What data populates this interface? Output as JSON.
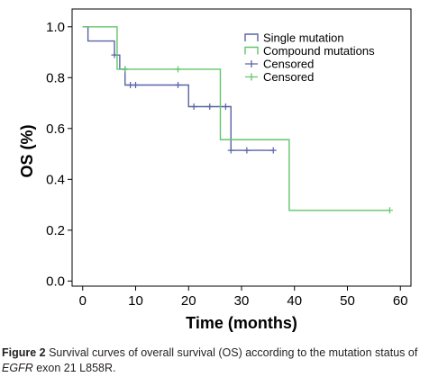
{
  "chart_data": {
    "type": "line",
    "subtype": "kaplan-meier-step",
    "xlabel": "Time (months)",
    "ylabel": "OS (%)",
    "xlim": [
      -2,
      62
    ],
    "ylim": [
      -0.02,
      1.07
    ],
    "xticks": [
      "0",
      "10",
      "20",
      "30",
      "40",
      "50",
      "60"
    ],
    "xtick_values": [
      0,
      10,
      20,
      30,
      40,
      50,
      60
    ],
    "yticks": [
      "0.0",
      "0.2",
      "0.4",
      "0.6",
      "0.8",
      "1.0"
    ],
    "ytick_values": [
      0,
      0.2,
      0.4,
      0.6,
      0.8,
      1.0
    ],
    "grid": false,
    "legend_position": "top-right",
    "series": [
      {
        "name": "Single mutation",
        "color": "#5a63a6",
        "steps": [
          [
            0,
            1.0
          ],
          [
            1,
            0.944
          ],
          [
            6,
            0.889
          ],
          [
            7,
            0.833
          ],
          [
            8,
            0.771
          ],
          [
            20,
            0.686
          ],
          [
            28,
            0.514
          ],
          [
            36,
            0.514
          ]
        ],
        "censored": [
          [
            6,
            0.889
          ],
          [
            8,
            0.833
          ],
          [
            9,
            0.771
          ],
          [
            10,
            0.771
          ],
          [
            18,
            0.771
          ],
          [
            21,
            0.686
          ],
          [
            24,
            0.686
          ],
          [
            27,
            0.686
          ],
          [
            28,
            0.514
          ],
          [
            31,
            0.514
          ],
          [
            36,
            0.514
          ]
        ]
      },
      {
        "name": "Compound mutations",
        "color": "#62c66a",
        "steps": [
          [
            0,
            1.0
          ],
          [
            6.5,
            0.833
          ],
          [
            26,
            0.556
          ],
          [
            39,
            0.278
          ],
          [
            58,
            0.278
          ]
        ],
        "censored": [
          [
            8,
            0.833
          ],
          [
            18,
            0.833
          ],
          [
            58,
            0.278
          ]
        ]
      }
    ],
    "legend": [
      {
        "label": "Single mutation",
        "color": "#5a63a6",
        "marker": "step"
      },
      {
        "label": "Compound mutations",
        "color": "#62c66a",
        "marker": "step"
      },
      {
        "label": "Censored",
        "color": "#5a63a6",
        "marker": "plus"
      },
      {
        "label": "Censored",
        "color": "#62c66a",
        "marker": "plus"
      }
    ]
  },
  "caption": {
    "figure_label": "Figure 2",
    "text_before": " Survival curves of overall survival (OS) according to the mutation status of ",
    "gene": "EGFR",
    "text_after": " exon 21 L858R."
  }
}
